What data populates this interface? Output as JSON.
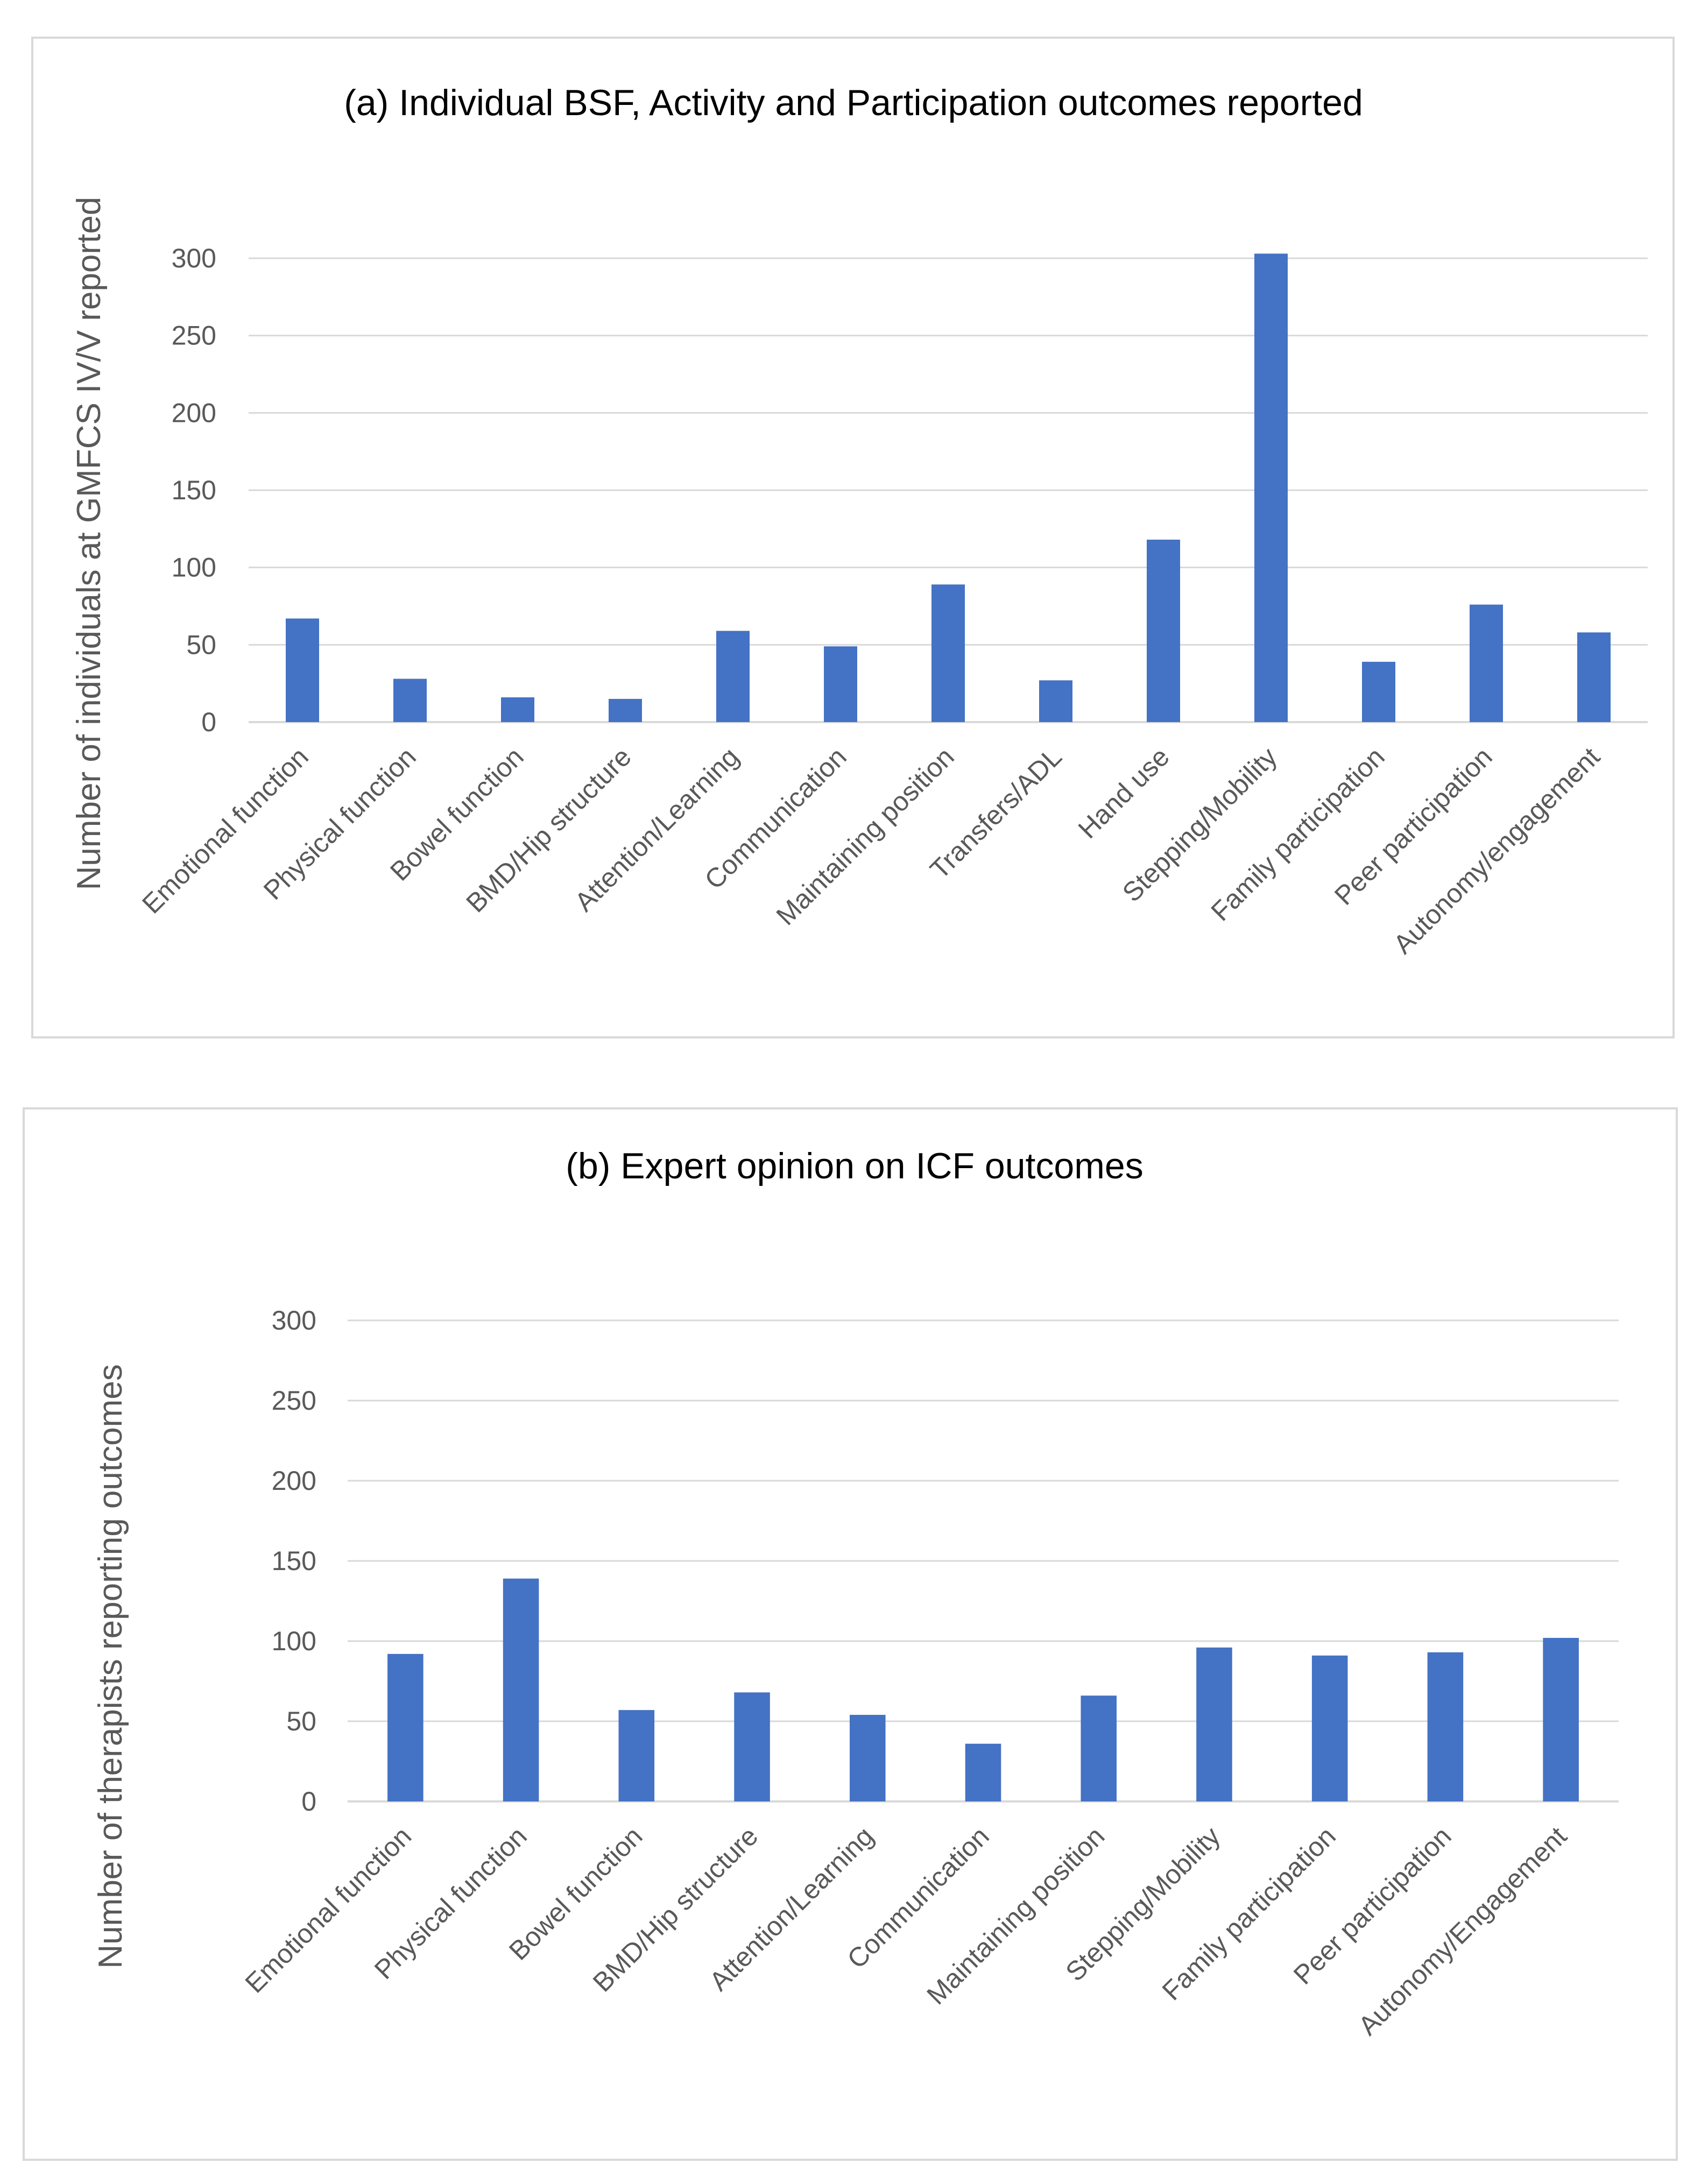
{
  "chart_data": [
    {
      "type": "bar",
      "title": "(a) Individual BSF, Activity and Participation outcomes reported",
      "xlabel": "",
      "ylabel": "Number of individuals at GMFCS IV/V reported",
      "ylim": [
        0,
        300
      ],
      "yticks": [
        0,
        50,
        100,
        150,
        200,
        250,
        300
      ],
      "grid": true,
      "color": "#4472C4",
      "categories": [
        "Emotional function",
        "Physical function",
        "Bowel function",
        "BMD/Hip structure",
        "Attention/Learning",
        "Communication",
        "Maintaining position",
        "Transfers/ADL",
        "Hand use",
        "Stepping/Mobility",
        "Family participation",
        "Peer participation",
        "Autonomy/engagement"
      ],
      "values": [
        67,
        28,
        16,
        15,
        59,
        49,
        89,
        27,
        118,
        303,
        39,
        76,
        58
      ]
    },
    {
      "type": "bar",
      "title": "(b) Expert opinion on ICF outcomes",
      "xlabel": "",
      "ylabel": "Number of therapists reporting outcomes",
      "ylim": [
        0,
        300
      ],
      "yticks": [
        0,
        50,
        100,
        150,
        200,
        250,
        300
      ],
      "grid": true,
      "color": "#4472C4",
      "categories": [
        "Emotional function",
        "Physical function",
        "Bowel function",
        "BMD/Hip structure",
        "Attention/Learning",
        "Communication",
        "Maintaining position",
        "Stepping/Mobility",
        "Family participation",
        "Peer participation",
        "Autonomy/Engagement"
      ],
      "values": [
        92,
        139,
        57,
        68,
        54,
        36,
        66,
        96,
        91,
        93,
        102
      ]
    }
  ]
}
